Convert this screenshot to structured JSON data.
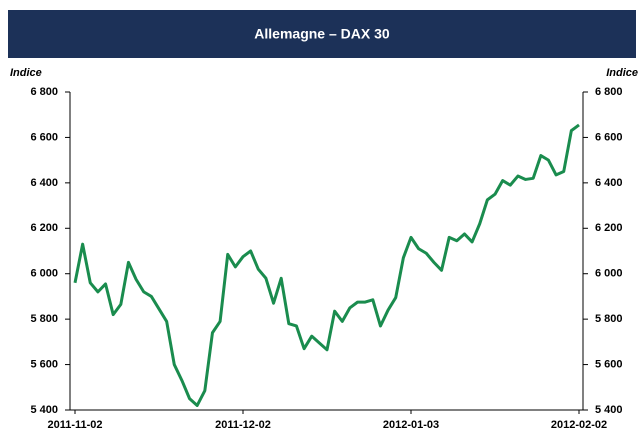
{
  "chart_data": {
    "type": "line",
    "title": "Allemagne – DAX 30",
    "ylabel": "Indice",
    "y2label": "Indice",
    "categories": [
      "2011-11-02",
      null,
      null,
      null,
      null,
      null,
      null,
      null,
      null,
      null,
      null,
      null,
      null,
      null,
      null,
      null,
      null,
      null,
      null,
      null,
      null,
      null,
      "2011-12-02",
      null,
      null,
      null,
      null,
      null,
      null,
      null,
      null,
      null,
      null,
      null,
      null,
      null,
      null,
      null,
      null,
      null,
      null,
      null,
      null,
      null,
      "2012-01-03",
      null,
      null,
      null,
      null,
      null,
      null,
      null,
      null,
      null,
      null,
      null,
      null,
      null,
      null,
      null,
      null,
      null,
      null,
      null,
      null,
      null,
      "2012-02-02"
    ],
    "series": [
      {
        "name": "DAX 30",
        "color": "#1a8c4e",
        "values": [
          5960,
          6130,
          5960,
          5920,
          5955,
          5820,
          5865,
          6050,
          5975,
          5920,
          5900,
          5845,
          5790,
          5600,
          5530,
          5450,
          5420,
          5485,
          5740,
          5790,
          6085,
          6030,
          6075,
          6100,
          6020,
          5980,
          5870,
          5980,
          5780,
          5770,
          5670,
          5725,
          5695,
          5665,
          5835,
          5790,
          5850,
          5875,
          5875,
          5885,
          5770,
          5840,
          5895,
          6070,
          6160,
          6110,
          6090,
          6050,
          6015,
          6160,
          6145,
          6175,
          6140,
          6220,
          6325,
          6350,
          6410,
          6390,
          6430,
          6415,
          6420,
          6520,
          6500,
          6435,
          6450,
          6630,
          6655
        ]
      }
    ],
    "ylim": [
      5400,
      6800
    ],
    "yticks": [
      {
        "value": 5400,
        "label": "5 400"
      },
      {
        "value": 5600,
        "label": "5 600"
      },
      {
        "value": 5800,
        "label": "5 800"
      },
      {
        "value": 6000,
        "label": "6 000"
      },
      {
        "value": 6200,
        "label": "6 200"
      },
      {
        "value": 6400,
        "label": "6 400"
      },
      {
        "value": 6600,
        "label": "6 600"
      },
      {
        "value": 6800,
        "label": "6 800"
      }
    ],
    "y2lim": [
      5400,
      6800
    ],
    "y2ticks": [
      {
        "value": 5400,
        "label": "5 400"
      },
      {
        "value": 5600,
        "label": "5 600"
      },
      {
        "value": 5800,
        "label": "5 800"
      },
      {
        "value": 6000,
        "label": "6 000"
      },
      {
        "value": 6200,
        "label": "6 200"
      },
      {
        "value": 6400,
        "label": "6 400"
      },
      {
        "value": 6600,
        "label": "6 600"
      },
      {
        "value": 6800,
        "label": "6 800"
      }
    ],
    "grid": false
  }
}
